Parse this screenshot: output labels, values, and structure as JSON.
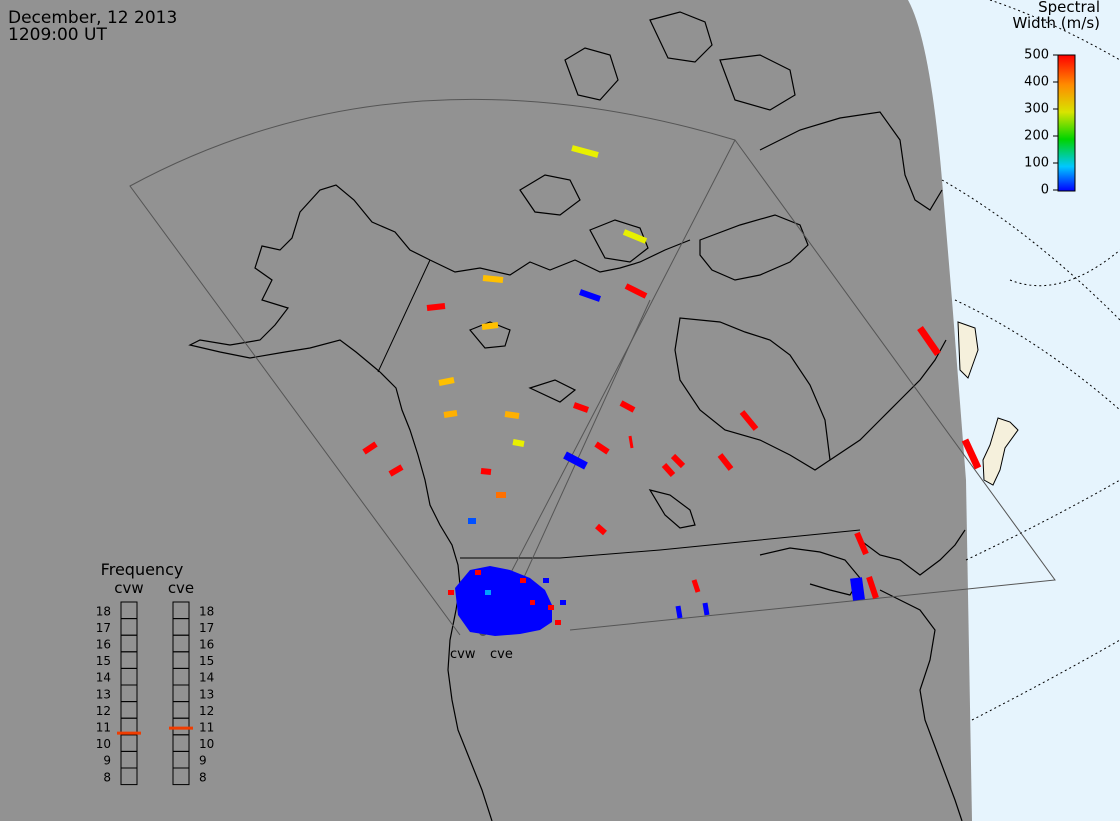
{
  "header": {
    "date": "December, 12 2013",
    "time": "1209:00 UT"
  },
  "colorbar": {
    "title_line1": "Spectral",
    "title_line2": "Width (m/s)",
    "ticks": [
      "500",
      "400",
      "300",
      "200",
      "100",
      "0"
    ]
  },
  "radars": {
    "west": "cvw",
    "east": "cve"
  },
  "frequency": {
    "title": "Frequency",
    "col_west": "cvw",
    "col_east": "cve",
    "scale": [
      "18",
      "17",
      "16",
      "15",
      "14",
      "13",
      "12",
      "11",
      "10",
      "9",
      "8"
    ],
    "cvw_mhz": 10.6,
    "cve_mhz": 10.9
  },
  "colors": {
    "land": "#929292",
    "ocean_beyond_horizon": "#e6f4fd",
    "frequency_marker": "#f03c00"
  }
}
